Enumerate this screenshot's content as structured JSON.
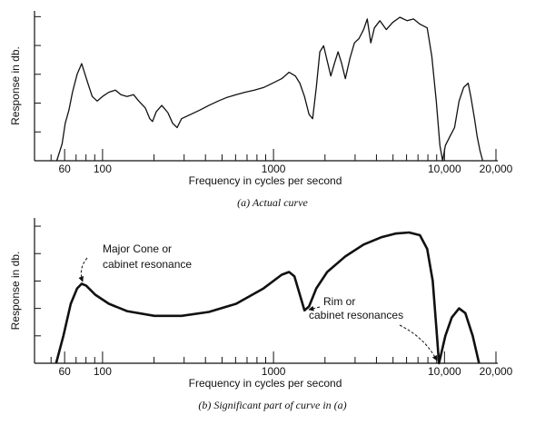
{
  "chart_data": [
    {
      "type": "line",
      "caption": "(a) Actual curve",
      "xlabel": "Frequency in cycles per second",
      "ylabel": "Response in db.",
      "xscale": "log",
      "color": "#111111",
      "line_width": 1.3,
      "xlim": [
        40,
        20000
      ],
      "ylim": [
        0,
        5.2
      ],
      "xticks": [
        60,
        100,
        1000,
        {
          "value": 10000,
          "label": "10,000"
        },
        {
          "value": 20000,
          "label": "20,000"
        }
      ],
      "x_minor_ticks": [
        50,
        70,
        80,
        90,
        200,
        300,
        400,
        500,
        600,
        700,
        800,
        900,
        2000,
        3000,
        4000,
        5000,
        6000,
        7000,
        8000,
        9000
      ],
      "y_tick_marks": [
        1,
        2,
        3,
        4,
        5
      ],
      "x": [
        54,
        58,
        60.5,
        63.6,
        66.7,
        71,
        75.5,
        82,
        87,
        93,
        100,
        109,
        119,
        128,
        139,
        152,
        163,
        178,
        189,
        196,
        206,
        222,
        241,
        257,
        273,
        290,
        328,
        371,
        419,
        474,
        535,
        605,
        684,
        773,
        874,
        989,
        1117,
        1232,
        1342,
        1426,
        1517,
        1612,
        1694,
        1778,
        1866,
        1963,
        2061,
        2163,
        2270,
        2387,
        2506,
        2631,
        2799,
        2972,
        3162,
        3365,
        3532,
        3707,
        3890,
        4188,
        4571,
        4977,
        5483,
        6053,
        6594,
        7184,
        7925,
        8433,
        8954,
        9400,
        9750,
        10120,
        10760,
        11450,
        12170,
        12940,
        13750,
        14260,
        14990,
        15530,
        16110,
        16720
      ],
      "values": [
        0,
        0.59,
        1.3,
        1.76,
        2.38,
        3.0,
        3.37,
        2.69,
        2.23,
        2.07,
        2.23,
        2.38,
        2.45,
        2.29,
        2.23,
        2.29,
        2.07,
        1.83,
        1.46,
        1.36,
        1.7,
        1.92,
        1.67,
        1.3,
        1.15,
        1.46,
        1.61,
        1.76,
        1.92,
        2.07,
        2.2,
        2.29,
        2.38,
        2.45,
        2.54,
        2.69,
        2.85,
        3.07,
        2.94,
        2.69,
        2.23,
        1.61,
        1.46,
        2.54,
        3.78,
        3.99,
        3.47,
        2.94,
        3.37,
        3.78,
        3.37,
        2.85,
        3.56,
        4.09,
        4.24,
        4.55,
        4.92,
        4.09,
        4.61,
        4.86,
        4.55,
        4.8,
        4.98,
        4.86,
        4.92,
        4.74,
        4.61,
        3.62,
        2.07,
        0.53,
        0,
        0.53,
        0.84,
        1.15,
        2.07,
        2.54,
        2.69,
        2.23,
        1.46,
        0.84,
        0.37,
        0
      ]
    },
    {
      "type": "line",
      "caption": "(b) Significant part of curve in (a)",
      "xlabel": "Frequency in cycles per second",
      "ylabel": "Response in db.",
      "xscale": "log",
      "color": "#111111",
      "line_width": 2.6,
      "xlim": [
        40,
        20000
      ],
      "ylim": [
        0,
        5.3
      ],
      "xticks": [
        60,
        100,
        1000,
        {
          "value": 10000,
          "label": "10,000"
        },
        {
          "value": 20000,
          "label": "20,000"
        }
      ],
      "x_minor_ticks": [
        50,
        70,
        80,
        90,
        200,
        300,
        400,
        500,
        600,
        700,
        800,
        900,
        2000,
        3000,
        4000,
        5000,
        6000,
        7000,
        8000,
        9000
      ],
      "y_tick_marks": [
        1,
        2,
        3,
        4,
        5
      ],
      "x": [
        53.5,
        59,
        65.2,
        71,
        75.5,
        80.2,
        90.6,
        109,
        139,
        201,
        290,
        419,
        605,
        874,
        1117,
        1232,
        1325,
        1426,
        1517,
        1612,
        1778,
        2061,
        2631,
        3365,
        4295,
        5164,
        6207,
        7184,
        7925,
        8531,
        8954,
        9290,
        10120,
        11040,
        12170,
        13240,
        14620,
        15930
      ],
      "values": [
        0,
        1.0,
        2.17,
        2.73,
        2.9,
        2.83,
        2.5,
        2.17,
        1.9,
        1.73,
        1.73,
        1.87,
        2.17,
        2.73,
        3.23,
        3.33,
        3.17,
        2.5,
        1.93,
        2.07,
        2.73,
        3.33,
        3.9,
        4.33,
        4.6,
        4.73,
        4.77,
        4.67,
        4.17,
        3.0,
        1.33,
        0,
        1.0,
        1.67,
        2.0,
        1.83,
        1.0,
        0
      ],
      "annotations": [
        {
          "lines": [
            "Major Cone or",
            "cabinet resonance"
          ]
        },
        {
          "lines": [
            "Rim or",
            "cabinet resonances"
          ]
        }
      ]
    }
  ]
}
